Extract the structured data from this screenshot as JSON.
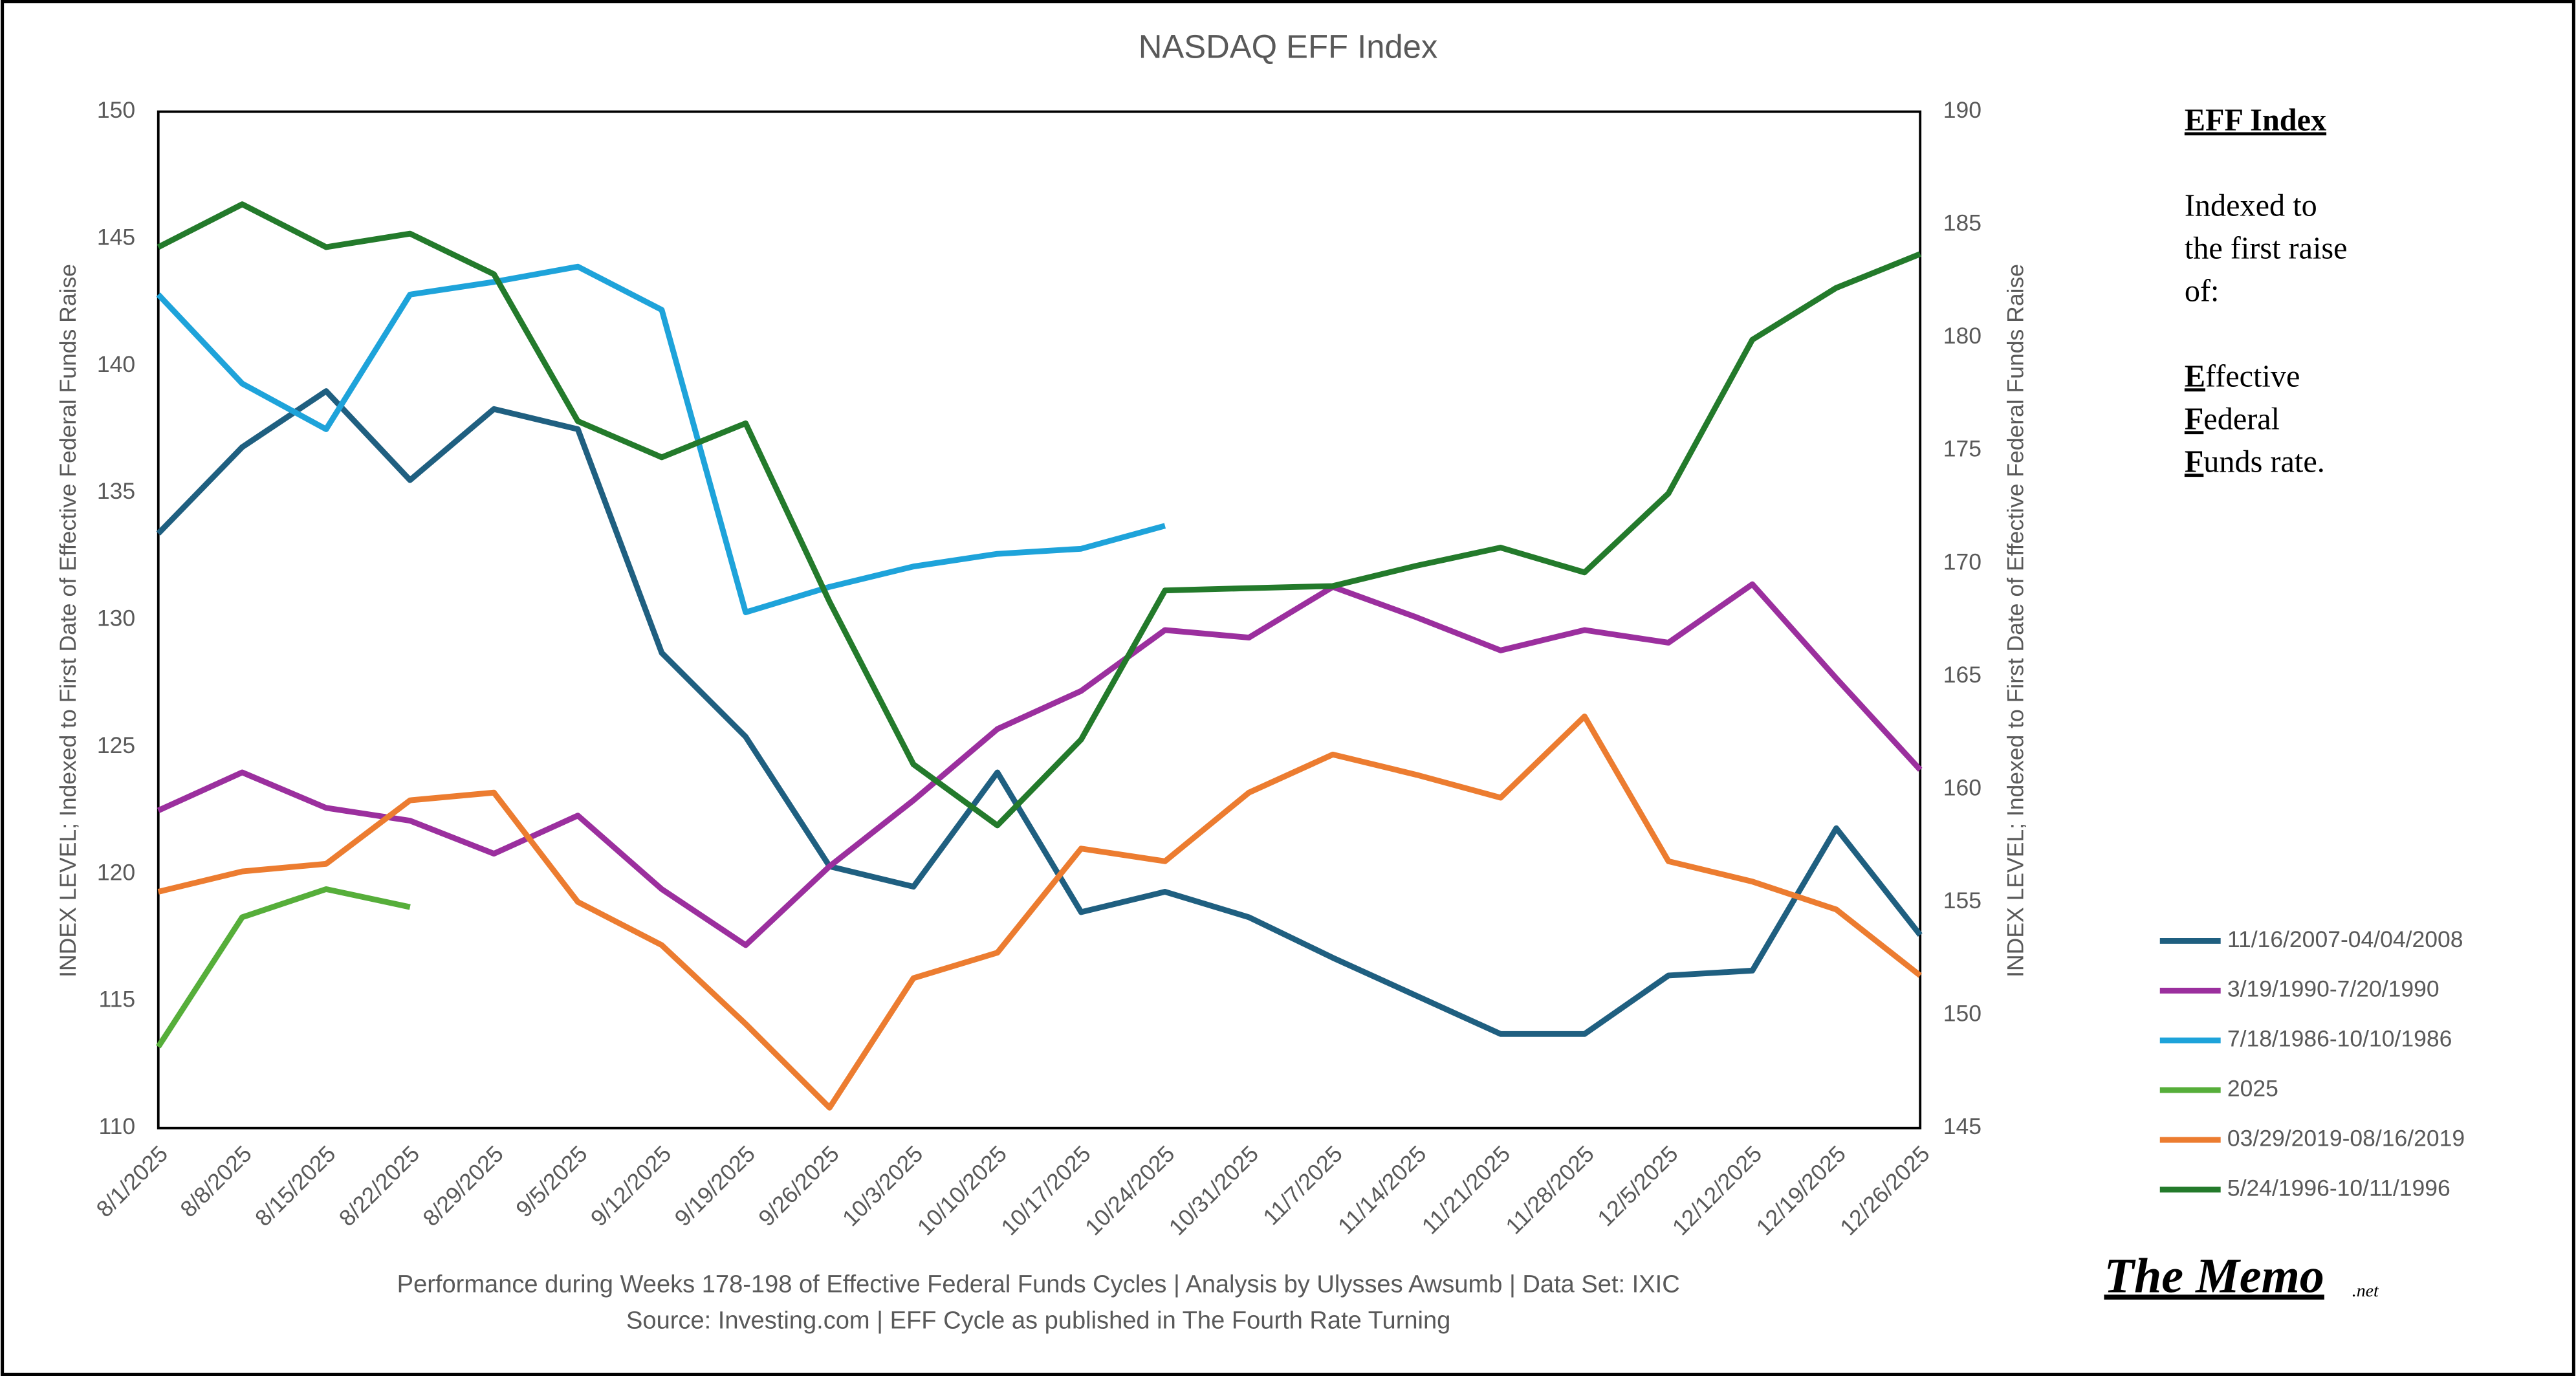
{
  "chart_data": {
    "type": "line",
    "title": "NASDAQ EFF Index",
    "ylabel": "INDEX LEVEL; Indexed to First Date of Effective Federal Funds Raise",
    "y2label": "INDEX LEVEL; Indexed to First Date of Effective Federal Funds Raise",
    "categories": [
      "8/1/2025",
      "8/8/2025",
      "8/15/2025",
      "8/22/2025",
      "8/29/2025",
      "9/5/2025",
      "9/12/2025",
      "9/19/2025",
      "9/26/2025",
      "10/3/2025",
      "10/10/2025",
      "10/17/2025",
      "10/24/2025",
      "10/31/2025",
      "11/7/2025",
      "11/14/2025",
      "11/21/2025",
      "11/28/2025",
      "12/5/2025",
      "12/12/2025",
      "12/19/2025",
      "12/26/2025"
    ],
    "ylim": [
      110,
      150
    ],
    "yticks": [
      110,
      115,
      120,
      125,
      130,
      135,
      140,
      145,
      150
    ],
    "y2lim": [
      145,
      190
    ],
    "y2ticks": [
      145,
      150,
      155,
      160,
      165,
      170,
      175,
      180,
      185,
      190
    ],
    "grid": false,
    "legend": "right",
    "series": [
      {
        "name": "11/16/2007-04/04/2008",
        "color": "#1f5f80",
        "values": [
          133.4,
          136.8,
          139.0,
          135.5,
          138.3,
          137.5,
          128.7,
          125.4,
          120.3,
          119.5,
          124.0,
          118.5,
          119.3,
          118.3,
          116.7,
          115.2,
          113.7,
          113.7,
          116.0,
          116.2,
          121.8,
          117.6
        ]
      },
      {
        "name": "3/19/1990-7/20/1990",
        "color": "#9b2f9e",
        "values": [
          122.5,
          124.0,
          122.6,
          122.1,
          120.8,
          122.3,
          119.4,
          117.2,
          120.3,
          122.9,
          125.7,
          127.2,
          129.6,
          129.3,
          131.3,
          130.1,
          128.8,
          129.6,
          129.1,
          131.4,
          127.7,
          124.1
        ]
      },
      {
        "name": "7/18/1986-10/10/1986",
        "color": "#1ea3da",
        "values": [
          142.8,
          139.3,
          137.5,
          142.8,
          143.3,
          143.9,
          142.2,
          130.3,
          131.3,
          132.1,
          132.6,
          132.8,
          133.7,
          null,
          null,
          null,
          null,
          null,
          null,
          null,
          null,
          null
        ]
      },
      {
        "name": "2025",
        "color": "#56ae3a",
        "values": [
          113.2,
          118.3,
          119.4,
          118.7,
          null,
          null,
          null,
          null,
          null,
          null,
          null,
          null,
          null,
          null,
          null,
          null,
          null,
          null,
          null,
          null,
          null,
          null
        ]
      },
      {
        "name": "03/29/2019-08/16/2019",
        "color": "#ec7c30",
        "values": [
          119.3,
          120.1,
          120.4,
          122.9,
          123.2,
          118.9,
          117.2,
          114.1,
          110.8,
          115.9,
          116.9,
          121.0,
          120.5,
          123.2,
          124.7,
          123.9,
          123.0,
          126.2,
          120.5,
          119.7,
          118.6,
          116.0
        ]
      },
      {
        "name": "5/24/1996-10/11/1996",
        "color": "#237a2b",
        "axis": "y2",
        "values": [
          184.0,
          185.9,
          184.0,
          184.6,
          182.8,
          176.3,
          174.7,
          176.2,
          168.3,
          161.1,
          158.4,
          162.2,
          168.8,
          168.9,
          169.0,
          169.9,
          170.7,
          169.6,
          173.1,
          179.9,
          182.2,
          183.7
        ]
      }
    ],
    "footnotes": [
      "Performance during Weeks 178-198 of Effective Federal Funds Cycles  |  Analysis  by Ulysses Awsumb  |  Data Set: IXIC",
      "Source: Investing.com  |  EFF Cycle as published in The Fourth Rate Turning"
    ]
  },
  "side_panel": {
    "heading": "EFF Index",
    "lines": [
      "Indexed to",
      "the first raise",
      "of:"
    ],
    "acronym": [
      "Effective",
      "Federal",
      "Funds rate."
    ]
  },
  "logo": {
    "text": "The Memo",
    "suffix": ".net"
  }
}
